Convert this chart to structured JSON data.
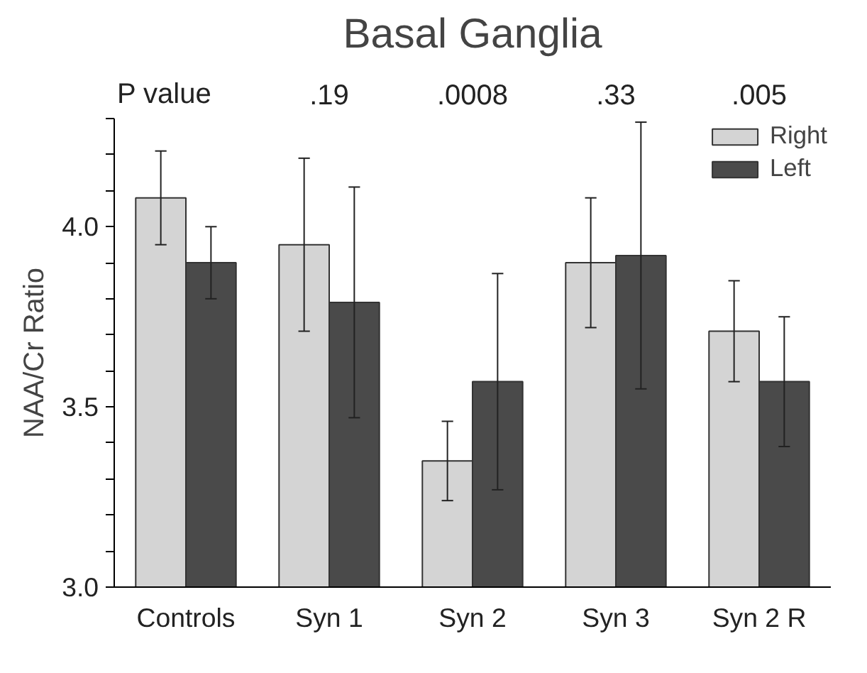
{
  "chart_data": {
    "type": "bar",
    "title": "Basal Ganglia",
    "ylabel": "NAA/Cr Ratio",
    "categories": [
      "Controls",
      "Syn 1",
      "Syn 2",
      "Syn 3",
      "Syn 2 R"
    ],
    "series": [
      {
        "name": "Right",
        "color": "#d4d4d4",
        "values": [
          4.08,
          3.95,
          3.35,
          3.9,
          3.71
        ],
        "errors": [
          0.13,
          0.24,
          0.11,
          0.18,
          0.14
        ]
      },
      {
        "name": "Left",
        "color": "#4a4a4a",
        "values": [
          3.9,
          3.79,
          3.57,
          3.92,
          3.57
        ],
        "errors": [
          0.1,
          0.32,
          0.3,
          0.37,
          0.18
        ]
      }
    ],
    "ylim": [
      3.0,
      4.3
    ],
    "yticks": [
      {
        "value": 3.0,
        "label": "3.0"
      },
      {
        "value": 3.1,
        "label": null
      },
      {
        "value": 3.2,
        "label": null
      },
      {
        "value": 3.3,
        "label": null
      },
      {
        "value": 3.4,
        "label": null
      },
      {
        "value": 3.5,
        "label": "3.5"
      },
      {
        "value": 3.6,
        "label": null
      },
      {
        "value": 3.7,
        "label": null
      },
      {
        "value": 3.8,
        "label": null
      },
      {
        "value": 3.9,
        "label": null
      },
      {
        "value": 4.0,
        "label": "4.0"
      },
      {
        "value": 4.1,
        "label": null
      },
      {
        "value": 4.2,
        "label": null
      },
      {
        "value": 4.3,
        "label": null
      }
    ],
    "annotations": [
      "P value",
      ".19",
      ".0008",
      ".33",
      ".005"
    ],
    "legend": "top right",
    "grid": false
  }
}
